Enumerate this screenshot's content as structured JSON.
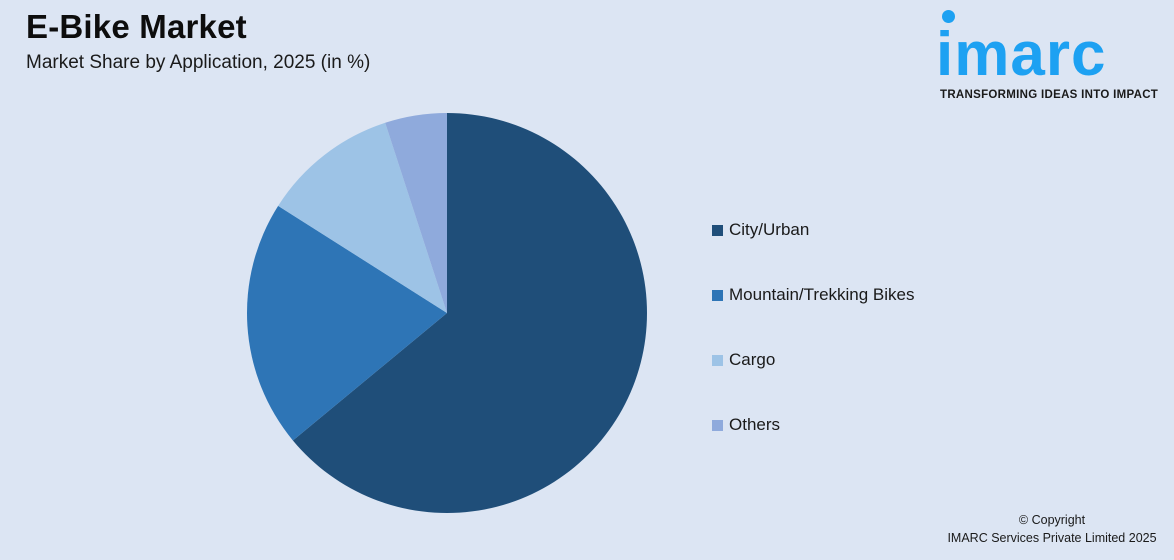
{
  "header": {
    "title": "E-Bike Market",
    "subtitle": "Market Share by Application, 2025 (in %)"
  },
  "logo": {
    "wordmark": "imarc",
    "tagline": "TRANSFORMING IDEAS INTO IMPACT",
    "color": "#1da1f2"
  },
  "footer": {
    "copyright_line1": "© Copyright",
    "copyright_line2": "IMARC Services Private Limited 2025"
  },
  "chart_data": {
    "type": "pie",
    "title": "E-Bike Market",
    "subtitle": "Market Share by Application, 2025 (in %)",
    "categories": [
      "City/Urban",
      "Mountain/Trekking Bikes",
      "Cargo",
      "Others"
    ],
    "values": [
      64,
      20,
      11,
      5
    ],
    "colors": [
      "#1f4e79",
      "#2e75b6",
      "#9dc3e6",
      "#8faadc"
    ],
    "start_angle": "12 o'clock, clockwise",
    "legend_position": "right",
    "data_labels": false
  },
  "legend": {
    "items": [
      {
        "label": "City/Urban",
        "color": "#1f4e79"
      },
      {
        "label": "Mountain/Trekking Bikes",
        "color": "#2e75b6"
      },
      {
        "label": "Cargo",
        "color": "#9dc3e6"
      },
      {
        "label": "Others",
        "color": "#8faadc"
      }
    ]
  }
}
